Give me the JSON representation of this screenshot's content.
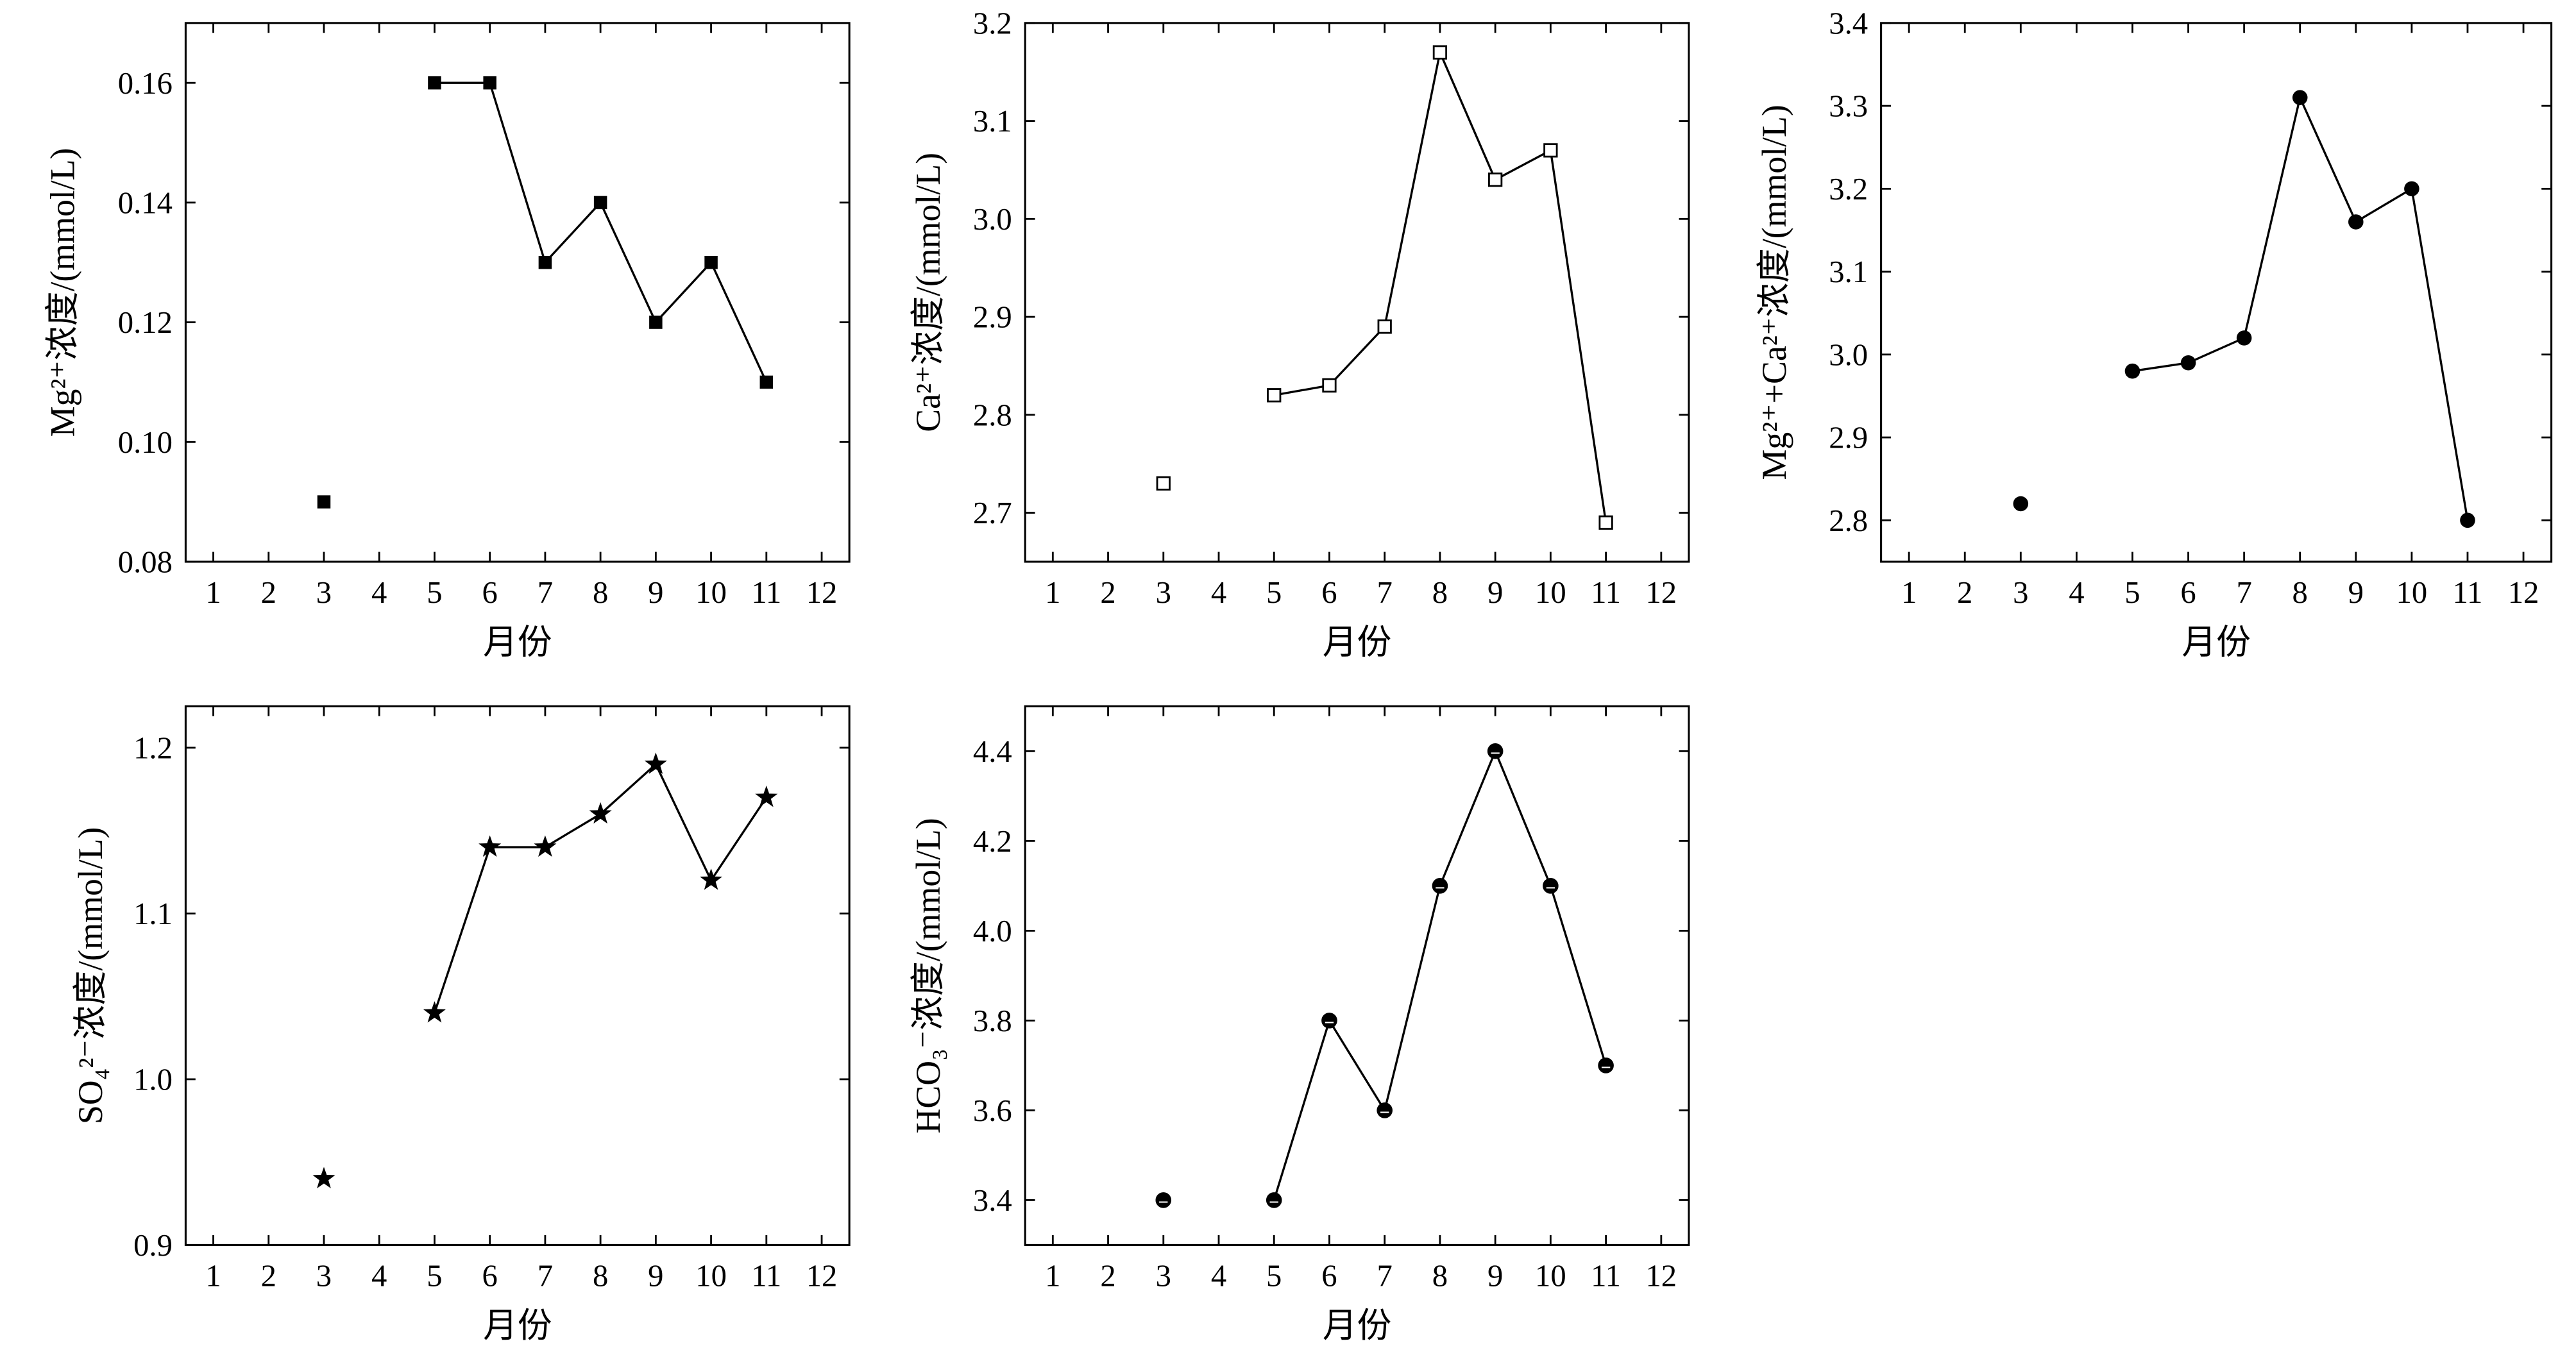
{
  "figure": {
    "background": "#ffffff",
    "ink": "#000000"
  },
  "chart_data": [
    {
      "type": "line",
      "ylabel": "Mg²⁺浓度/(mmol/L)",
      "xlabel": "月份",
      "xticks": [
        "1",
        "2",
        "3",
        "4",
        "5",
        "6",
        "7",
        "8",
        "9",
        "10",
        "11",
        "12"
      ],
      "yticks": [
        "0.08",
        "0.10",
        "0.12",
        "0.14",
        "0.16"
      ],
      "xlim": [
        0.5,
        12.5
      ],
      "ylim": [
        0.08,
        0.17
      ],
      "grid": false,
      "legend": "none",
      "marker": "filled-square",
      "color": "#000000",
      "series": [
        {
          "x": [
            3,
            4,
            5,
            6,
            7,
            8,
            9,
            10,
            11
          ],
          "y": [
            0.09,
            null,
            0.16,
            0.16,
            0.13,
            0.14,
            0.12,
            0.13,
            0.11
          ]
        }
      ]
    },
    {
      "type": "line",
      "ylabel": "Ca²⁺浓度/(mmol/L)",
      "xlabel": "月份",
      "xticks": [
        "1",
        "2",
        "3",
        "4",
        "5",
        "6",
        "7",
        "8",
        "9",
        "10",
        "11",
        "12"
      ],
      "yticks": [
        "2.7",
        "2.8",
        "2.9",
        "3.0",
        "3.1",
        "3.2"
      ],
      "xlim": [
        0.5,
        12.5
      ],
      "ylim": [
        2.65,
        3.2
      ],
      "grid": false,
      "legend": "none",
      "marker": "open-square",
      "color": "#000000",
      "series": [
        {
          "x": [
            3,
            4,
            5,
            6,
            7,
            8,
            9,
            10,
            11
          ],
          "y": [
            2.73,
            null,
            2.82,
            2.83,
            2.89,
            3.17,
            3.04,
            3.07,
            2.69
          ]
        }
      ]
    },
    {
      "type": "line",
      "ylabel": "Mg²⁺+Ca²⁺浓度/(mmol/L)",
      "xlabel": "月份",
      "xticks": [
        "1",
        "2",
        "3",
        "4",
        "5",
        "6",
        "7",
        "8",
        "9",
        "10",
        "11",
        "12"
      ],
      "yticks": [
        "2.8",
        "2.9",
        "3.0",
        "3.1",
        "3.2",
        "3.3",
        "3.4"
      ],
      "xlim": [
        0.5,
        12.5
      ],
      "ylim": [
        2.75,
        3.4
      ],
      "grid": false,
      "legend": "none",
      "marker": "filled-circle",
      "color": "#000000",
      "series": [
        {
          "x": [
            3,
            4,
            5,
            6,
            7,
            8,
            9,
            10,
            11
          ],
          "y": [
            2.82,
            null,
            2.98,
            2.99,
            3.02,
            3.31,
            3.16,
            3.2,
            2.8
          ]
        }
      ]
    },
    {
      "type": "line",
      "ylabel": "SO₄²⁻浓度/(mmol/L)",
      "xlabel": "月份",
      "xticks": [
        "1",
        "2",
        "3",
        "4",
        "5",
        "6",
        "7",
        "8",
        "9",
        "10",
        "11",
        "12"
      ],
      "yticks": [
        "0.9",
        "1.0",
        "1.1",
        "1.2"
      ],
      "xlim": [
        0.5,
        12.5
      ],
      "ylim": [
        0.9,
        1.225
      ],
      "grid": false,
      "legend": "none",
      "marker": "star",
      "color": "#000000",
      "series": [
        {
          "x": [
            3,
            4,
            5,
            6,
            7,
            8,
            9,
            10,
            11
          ],
          "y": [
            0.94,
            null,
            1.04,
            1.14,
            1.14,
            1.16,
            1.19,
            1.12,
            1.17
          ]
        }
      ]
    },
    {
      "type": "line",
      "ylabel": "HCO₃⁻浓度/(mmol/L)",
      "xlabel": "月份",
      "xticks": [
        "1",
        "2",
        "3",
        "4",
        "5",
        "6",
        "7",
        "8",
        "9",
        "10",
        "11",
        "12"
      ],
      "yticks": [
        "3.4",
        "3.6",
        "3.8",
        "4.0",
        "4.2",
        "4.4"
      ],
      "xlim": [
        0.5,
        12.5
      ],
      "ylim": [
        3.3,
        4.5
      ],
      "grid": false,
      "legend": "none",
      "marker": "half-filled-circle",
      "color": "#000000",
      "series": [
        {
          "x": [
            3,
            4,
            5,
            6,
            7,
            8,
            9,
            10,
            11
          ],
          "y": [
            3.4,
            null,
            3.4,
            3.8,
            3.6,
            4.1,
            4.4,
            4.1,
            3.7
          ]
        }
      ]
    }
  ]
}
